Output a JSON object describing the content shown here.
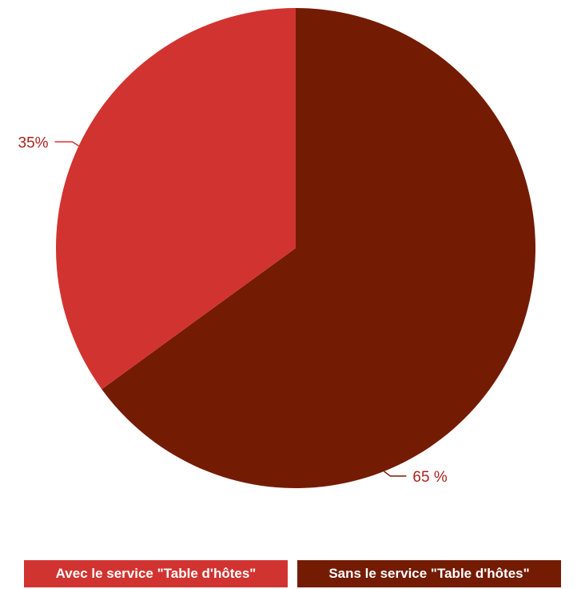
{
  "chart_data": {
    "type": "pie",
    "title": "",
    "slices": [
      {
        "label": "Avec le service \"Table d'hôtes\"",
        "value": 35,
        "display": "35%",
        "color": "#d13430"
      },
      {
        "label": "Sans le service \"Table d'hôtes\"",
        "value": 65,
        "display": "65 %",
        "color": "#741b04"
      }
    ],
    "legend_position": "bottom"
  }
}
